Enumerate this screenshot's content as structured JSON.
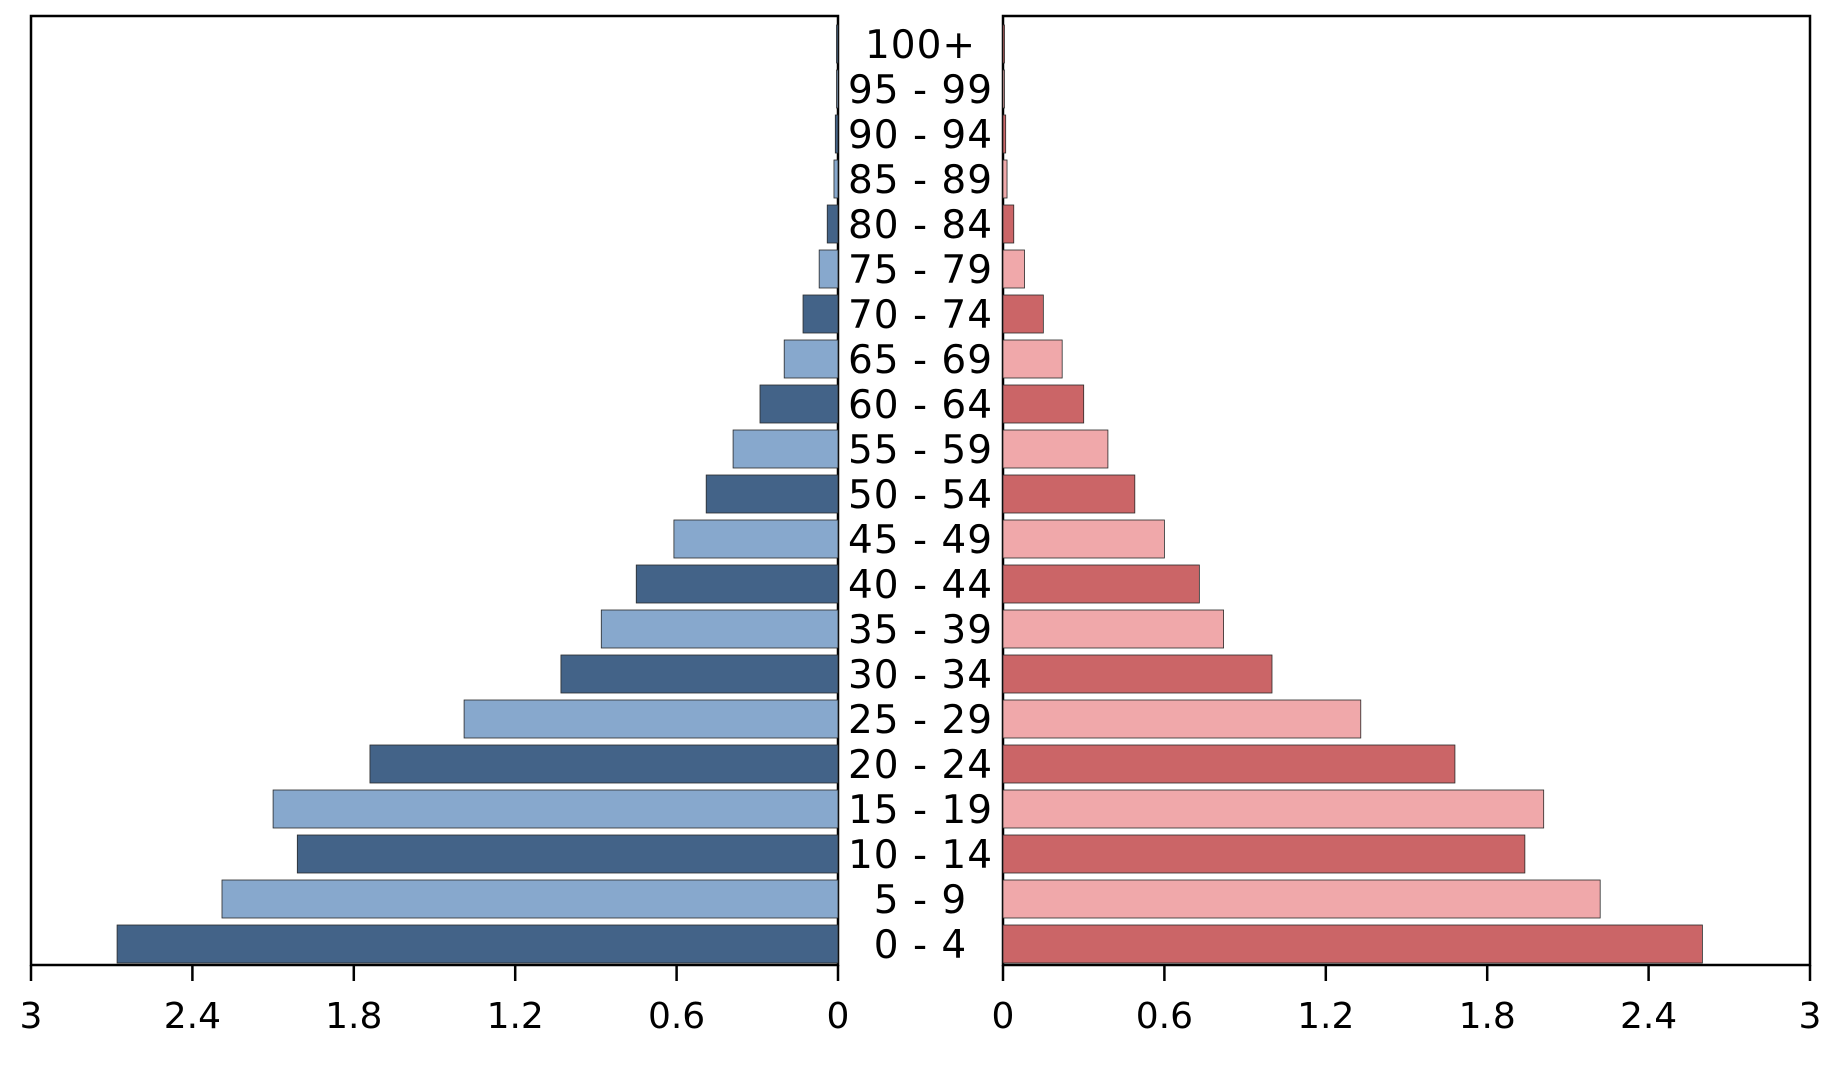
{
  "chart_data": {
    "type": "bar",
    "orientation": "horizontal",
    "layout": "population-pyramid",
    "categories": [
      "0 - 4",
      "5 - 9",
      "10 - 14",
      "15 - 19",
      "20 - 24",
      "25 - 29",
      "30 - 34",
      "35 - 39",
      "40 - 44",
      "45 - 49",
      "50 - 54",
      "55 - 59",
      "60 - 64",
      "65 - 69",
      "70 - 74",
      "75 - 79",
      "80 - 84",
      "85 - 89",
      "90 - 94",
      "95 - 99",
      "100+"
    ],
    "series": [
      {
        "side": "left",
        "values": [
          2.68,
          2.29,
          2.01,
          2.1,
          1.74,
          1.39,
          1.03,
          0.88,
          0.75,
          0.61,
          0.49,
          0.39,
          0.29,
          0.2,
          0.13,
          0.07,
          0.04,
          0.015,
          0.01,
          0.005,
          0.002
        ],
        "colors": [
          "#436388",
          "#87a8cd"
        ]
      },
      {
        "side": "right",
        "values": [
          2.6,
          2.22,
          1.94,
          2.01,
          1.68,
          1.33,
          1.0,
          0.82,
          0.73,
          0.6,
          0.49,
          0.39,
          0.3,
          0.22,
          0.15,
          0.08,
          0.04,
          0.015,
          0.01,
          0.005,
          0.002
        ],
        "colors": [
          "#cb6567",
          "#f0a8aa"
        ]
      }
    ],
    "xlim": [
      0,
      3
    ],
    "left_ticks": [
      "3",
      "2.4",
      "1.8",
      "1.2",
      "0.6",
      "0"
    ],
    "right_ticks": [
      "0",
      "0.6",
      "1.2",
      "1.8",
      "2.4",
      "3"
    ],
    "tick_values": [
      0,
      0.6,
      1.2,
      1.8,
      2.4,
      3
    ],
    "title": "",
    "xlabel": "",
    "ylabel": "",
    "grid": false,
    "legend": "none"
  }
}
